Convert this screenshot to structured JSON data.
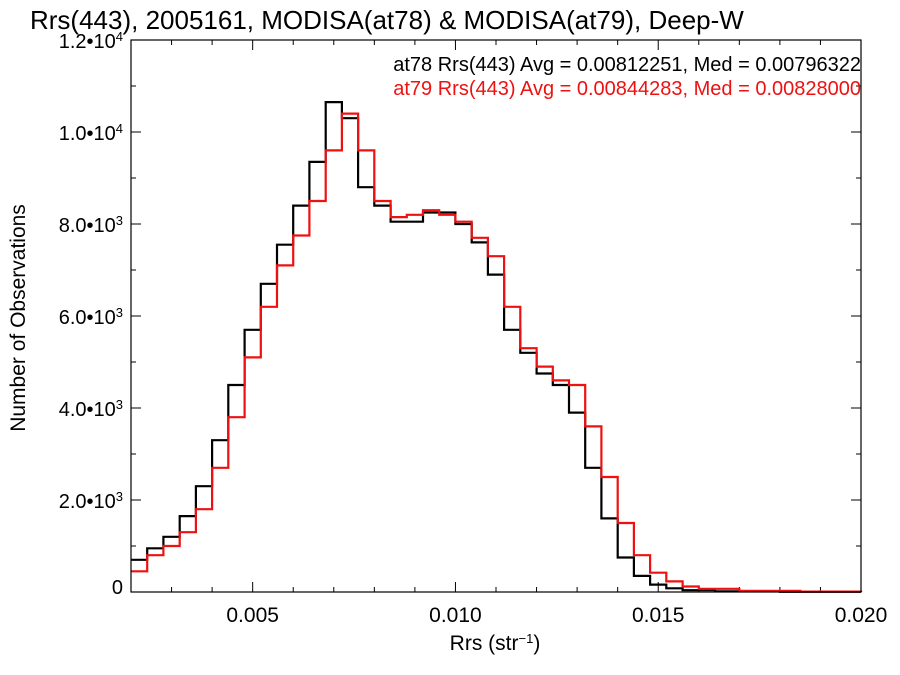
{
  "chart_data": {
    "type": "line",
    "title": "Rrs(443), 2005161, MODISA(at78) & MODISA(at79), Deep-W",
    "xlabel": "Rrs (str",
    "xlabel_sup": "−1",
    "xlabel_close": ")",
    "ylabel": "Number of Observations",
    "xlim": [
      0.002,
      0.02
    ],
    "ylim": [
      0,
      12000
    ],
    "x_ticks": [
      {
        "value": 0.005,
        "label": "0.005"
      },
      {
        "value": 0.01,
        "label": "0.010"
      },
      {
        "value": 0.015,
        "label": "0.015"
      },
      {
        "value": 0.02,
        "label": "0.020"
      }
    ],
    "y_ticks": [
      {
        "value": 0,
        "mant": "0",
        "exp": ""
      },
      {
        "value": 2000,
        "mant": "2.0•10",
        "exp": "3"
      },
      {
        "value": 4000,
        "mant": "4.0•10",
        "exp": "3"
      },
      {
        "value": 6000,
        "mant": "6.0•10",
        "exp": "3"
      },
      {
        "value": 8000,
        "mant": "8.0•10",
        "exp": "3"
      },
      {
        "value": 10000,
        "mant": "1.0•10",
        "exp": "4"
      },
      {
        "value": 12000,
        "mant": "1.2•10",
        "exp": "4"
      }
    ],
    "annotations": [
      {
        "text": "at78 Rrs(443) Avg = 0.00812251, Med = 0.00796322",
        "color": "#000000"
      },
      {
        "text": "at79 Rrs(443) Avg = 0.00844283, Med = 0.00828000",
        "color": "#ee1111"
      }
    ],
    "series": [
      {
        "color": "#000000",
        "points": [
          [
            0.002,
            700
          ],
          [
            0.0024,
            950
          ],
          [
            0.0028,
            1200
          ],
          [
            0.0032,
            1650
          ],
          [
            0.0036,
            2300
          ],
          [
            0.004,
            3300
          ],
          [
            0.0044,
            4500
          ],
          [
            0.0048,
            5700
          ],
          [
            0.0052,
            6700
          ],
          [
            0.0056,
            7550
          ],
          [
            0.006,
            8400
          ],
          [
            0.0064,
            9350
          ],
          [
            0.0068,
            10650
          ],
          [
            0.0072,
            10300
          ],
          [
            0.0076,
            8800
          ],
          [
            0.008,
            8400
          ],
          [
            0.0084,
            8050
          ],
          [
            0.0088,
            8050
          ],
          [
            0.0092,
            8250
          ],
          [
            0.0096,
            8250
          ],
          [
            0.01,
            8000
          ],
          [
            0.0104,
            7600
          ],
          [
            0.0108,
            6900
          ],
          [
            0.0112,
            5700
          ],
          [
            0.0116,
            5200
          ],
          [
            0.012,
            4750
          ],
          [
            0.0124,
            4500
          ],
          [
            0.0128,
            3900
          ],
          [
            0.0132,
            2700
          ],
          [
            0.0136,
            1600
          ],
          [
            0.014,
            750
          ],
          [
            0.0144,
            350
          ],
          [
            0.0148,
            160
          ],
          [
            0.0152,
            80
          ],
          [
            0.0156,
            40
          ],
          [
            0.0164,
            15
          ],
          [
            0.018,
            5
          ],
          [
            0.02,
            0
          ]
        ]
      },
      {
        "color": "#ee1111",
        "points": [
          [
            0.002,
            450
          ],
          [
            0.0024,
            800
          ],
          [
            0.0028,
            1000
          ],
          [
            0.0032,
            1300
          ],
          [
            0.0036,
            1800
          ],
          [
            0.004,
            2700
          ],
          [
            0.0044,
            3800
          ],
          [
            0.0048,
            5100
          ],
          [
            0.0052,
            6200
          ],
          [
            0.0056,
            7100
          ],
          [
            0.006,
            7750
          ],
          [
            0.0064,
            8500
          ],
          [
            0.0068,
            9600
          ],
          [
            0.0072,
            10400
          ],
          [
            0.0076,
            9600
          ],
          [
            0.008,
            8500
          ],
          [
            0.0084,
            8150
          ],
          [
            0.0088,
            8200
          ],
          [
            0.0092,
            8300
          ],
          [
            0.0096,
            8200
          ],
          [
            0.01,
            8050
          ],
          [
            0.0104,
            7700
          ],
          [
            0.0108,
            7300
          ],
          [
            0.0112,
            6200
          ],
          [
            0.0116,
            5300
          ],
          [
            0.012,
            4900
          ],
          [
            0.0124,
            4600
          ],
          [
            0.0128,
            4500
          ],
          [
            0.0132,
            3600
          ],
          [
            0.0136,
            2500
          ],
          [
            0.014,
            1500
          ],
          [
            0.0144,
            800
          ],
          [
            0.0148,
            420
          ],
          [
            0.0152,
            230
          ],
          [
            0.0156,
            120
          ],
          [
            0.016,
            70
          ],
          [
            0.017,
            25
          ],
          [
            0.0185,
            8
          ],
          [
            0.02,
            0
          ]
        ]
      }
    ]
  }
}
